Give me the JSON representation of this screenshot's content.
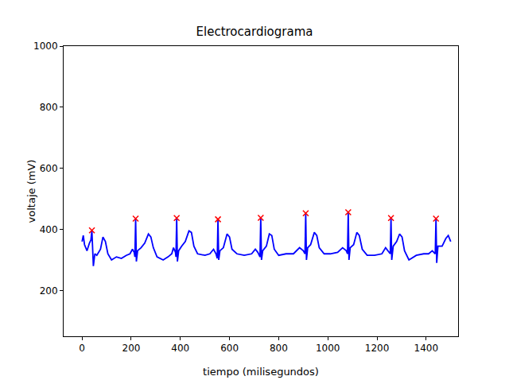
{
  "chart_data": {
    "type": "line",
    "title": "Electrocardiograma",
    "x_label": "tiempo (milisegundos)",
    "y_label": "voltaje (mV)",
    "xlim": [
      -75,
      1530
    ],
    "ylim": [
      50,
      1000
    ],
    "xticks": [
      0,
      200,
      400,
      600,
      800,
      1000,
      1200,
      1400
    ],
    "yticks": [
      200,
      400,
      600,
      800,
      1000
    ],
    "grid": false,
    "series": [
      {
        "type": "line",
        "color": "blue",
        "line_style": "solid",
        "x": [
          0,
          5,
          10,
          20,
          30,
          36,
          40,
          43,
          46,
          52,
          60,
          75,
          85,
          95,
          105,
          120,
          140,
          160,
          180,
          195,
          205,
          212,
          215,
          218,
          221,
          226,
          240,
          255,
          270,
          280,
          290,
          305,
          330,
          350,
          365,
          372,
          380,
          382,
          385,
          388,
          393,
          405,
          420,
          435,
          445,
          455,
          470,
          500,
          520,
          535,
          545,
          550,
          553,
          556,
          561,
          575,
          590,
          600,
          610,
          630,
          660,
          690,
          705,
          715,
          724,
          727,
          730,
          735,
          750,
          762,
          772,
          782,
          800,
          830,
          860,
          885,
          900,
          907,
          910,
          913,
          918,
          930,
          945,
          955,
          965,
          985,
          1010,
          1040,
          1060,
          1075,
          1080,
          1083,
          1086,
          1091,
          1105,
          1118,
          1128,
          1140,
          1160,
          1190,
          1220,
          1235,
          1250,
          1254,
          1257,
          1260,
          1266,
          1280,
          1292,
          1302,
          1312,
          1330,
          1360,
          1390,
          1410,
          1425,
          1437,
          1440,
          1443,
          1448,
          1465,
          1480,
          1490,
          1500
        ],
        "values": [
          360,
          380,
          350,
          330,
          355,
          365,
          397,
          300,
          280,
          320,
          315,
          335,
          375,
          360,
          320,
          300,
          310,
          305,
          315,
          320,
          335,
          325,
          310,
          435,
          295,
          330,
          340,
          355,
          385,
          375,
          340,
          310,
          300,
          310,
          320,
          340,
          325,
          310,
          437,
          295,
          330,
          345,
          360,
          395,
          390,
          345,
          320,
          315,
          320,
          335,
          320,
          305,
          433,
          300,
          330,
          340,
          385,
          375,
          335,
          320,
          315,
          320,
          335,
          325,
          310,
          438,
          300,
          330,
          345,
          385,
          380,
          335,
          315,
          320,
          320,
          340,
          330,
          320,
          453,
          300,
          340,
          350,
          390,
          380,
          340,
          320,
          320,
          325,
          340,
          330,
          320,
          456,
          300,
          340,
          350,
          390,
          380,
          335,
          315,
          315,
          320,
          340,
          325,
          320,
          437,
          300,
          345,
          360,
          385,
          375,
          330,
          300,
          315,
          320,
          320,
          330,
          320,
          435,
          290,
          345,
          345,
          370,
          380,
          360
        ]
      },
      {
        "type": "scatter",
        "color": "red",
        "marker": "x",
        "x": [
          40,
          218,
          385,
          553,
          727,
          910,
          1083,
          1257,
          1440
        ],
        "values": [
          397,
          435,
          437,
          433,
          438,
          453,
          456,
          437,
          435
        ]
      }
    ]
  }
}
